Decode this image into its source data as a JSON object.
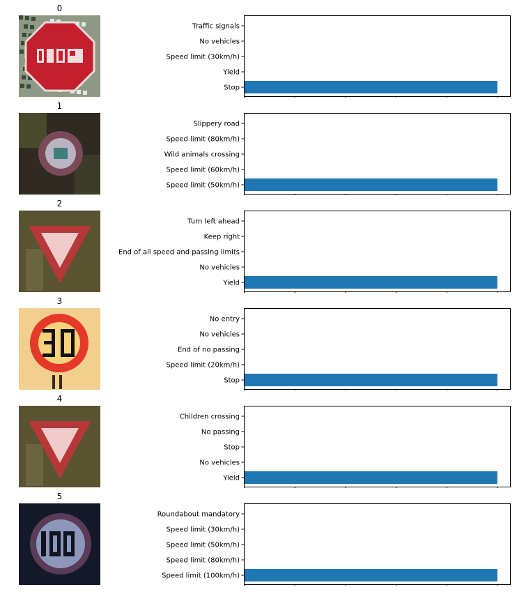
{
  "colors": {
    "bar": "#1f77b4",
    "axis": "#000000"
  },
  "xticks": [
    "0.0",
    "0.2",
    "0.4",
    "0.6",
    "0.8",
    "1.0"
  ],
  "chart_data": [
    {
      "type": "bar",
      "orientation": "horizontal",
      "title": "0",
      "image": "stop-sign",
      "categories": [
        "Stop",
        "Yield",
        "Speed limit (30km/h)",
        "No vehicles",
        "Traffic signals"
      ],
      "values": [
        1.0,
        0,
        0,
        0,
        0
      ],
      "xlim": [
        0,
        1.05
      ]
    },
    {
      "type": "bar",
      "orientation": "horizontal",
      "title": "1",
      "image": "speed-limit-50-sign",
      "categories": [
        "Speed limit (50km/h)",
        "Speed limit (60km/h)",
        "Wild animals crossing",
        "Speed limit (80km/h)",
        "Slippery road"
      ],
      "values": [
        1.0,
        0,
        0,
        0,
        0
      ],
      "xlim": [
        0,
        1.05
      ]
    },
    {
      "type": "bar",
      "orientation": "horizontal",
      "title": "2",
      "image": "yield-sign",
      "categories": [
        "Yield",
        "No vehicles",
        "End of all speed and passing limits",
        "Keep right",
        "Turn left ahead"
      ],
      "values": [
        1.0,
        0,
        0,
        0,
        0
      ],
      "xlim": [
        0,
        1.05
      ]
    },
    {
      "type": "bar",
      "orientation": "horizontal",
      "title": "3",
      "image": "speed-limit-30-sign",
      "categories": [
        "Stop",
        "Speed limit (20km/h)",
        "End of no passing",
        "No vehicles",
        "No entry"
      ],
      "values": [
        1.0,
        0,
        0,
        0,
        0
      ],
      "xlim": [
        0,
        1.05
      ]
    },
    {
      "type": "bar",
      "orientation": "horizontal",
      "title": "4",
      "image": "yield-sign",
      "categories": [
        "Yield",
        "No vehicles",
        "Stop",
        "No passing",
        "Children crossing"
      ],
      "values": [
        1.0,
        0,
        0,
        0,
        0
      ],
      "xlim": [
        0,
        1.05
      ]
    },
    {
      "type": "bar",
      "orientation": "horizontal",
      "title": "5",
      "image": "speed-limit-100-sign",
      "categories": [
        "Speed limit (100km/h)",
        "Speed limit (80km/h)",
        "Speed limit (50km/h)",
        "Speed limit (30km/h)",
        "Roundabout mandatory"
      ],
      "values": [
        1.0,
        0,
        0,
        0,
        0
      ],
      "xlim": [
        0,
        1.05
      ]
    }
  ]
}
